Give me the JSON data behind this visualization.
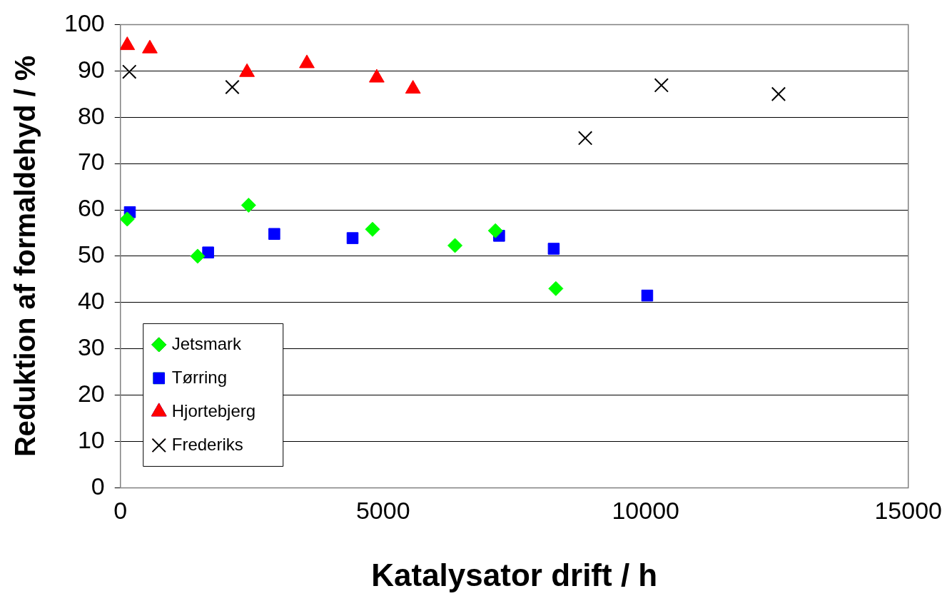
{
  "chart_data": {
    "type": "scatter",
    "xlabel": "Katalysator drift / h",
    "ylabel": "Reduktion af formaldehyd / %",
    "xlim": [
      0,
      15000
    ],
    "xticks": [
      0,
      5000,
      10000,
      15000
    ],
    "ylim": [
      0,
      100
    ],
    "yticks": [
      0,
      10,
      20,
      30,
      40,
      50,
      60,
      70,
      80,
      90,
      100
    ],
    "grid": "y",
    "legend": "bottom left",
    "series": [
      {
        "name": "Jetsmark",
        "color": "#00ff00",
        "marker": "diamond",
        "x": [
          130,
          1470,
          2440,
          4800,
          6370,
          7140,
          8290
        ],
        "values": [
          58,
          50,
          61,
          55.8,
          52.3,
          55.5,
          43
        ]
      },
      {
        "name": "Tørring",
        "color": "#0000ff",
        "marker": "square",
        "x": [
          180,
          1670,
          2930,
          4420,
          7210,
          8250,
          10030
        ],
        "values": [
          59.5,
          50.8,
          54.8,
          53.9,
          54.4,
          51.6,
          41.5
        ]
      },
      {
        "name": "Hjortebjerg",
        "color": "#ff0000",
        "marker": "triangle",
        "x": [
          130,
          560,
          2410,
          3550,
          4880,
          5570
        ],
        "values": [
          95.5,
          94.8,
          89.7,
          91.6,
          88.5,
          86.1
        ]
      },
      {
        "name": "Frederiks",
        "color": "#000000",
        "marker": "cross",
        "x": [
          170,
          2130,
          8850,
          10300,
          12530
        ],
        "values": [
          89.8,
          86.5,
          75.5,
          86.9,
          85
        ]
      }
    ]
  }
}
